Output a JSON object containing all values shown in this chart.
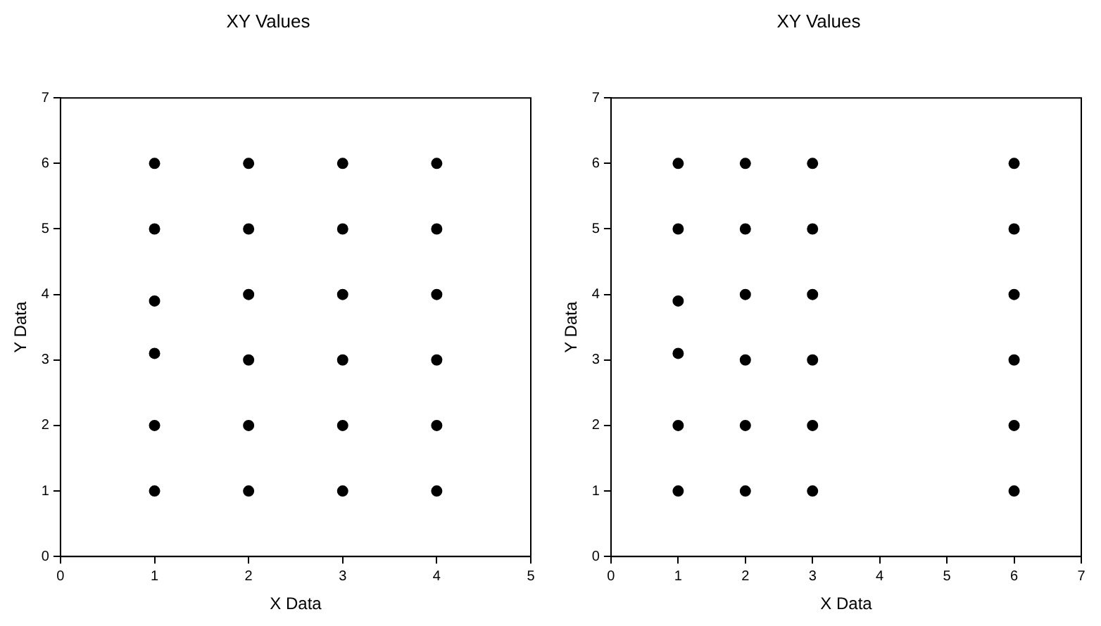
{
  "chart_data": [
    {
      "type": "scatter",
      "title": "XY Values",
      "xlabel": "X Data",
      "ylabel": "Y Data",
      "marker": "circle",
      "color": "#000000",
      "x": [
        1,
        1,
        1,
        1,
        1,
        1,
        2,
        2,
        2,
        2,
        2,
        2,
        3,
        3,
        3,
        3,
        3,
        3,
        4,
        4,
        4,
        4,
        4,
        4
      ],
      "values": [
        1,
        2,
        3.1,
        3.9,
        5,
        6,
        1,
        2,
        3,
        4,
        5,
        6,
        1,
        2,
        3,
        4,
        5,
        6,
        1,
        2,
        3,
        4,
        5,
        6
      ],
      "xlim": [
        0,
        5
      ],
      "xticks": [
        0,
        1,
        2,
        3,
        4,
        5
      ],
      "ylim": [
        0,
        7
      ],
      "yticks": [
        0,
        1,
        2,
        3,
        4,
        5,
        6,
        7
      ]
    },
    {
      "type": "scatter",
      "title": "XY Values",
      "xlabel": "X Data",
      "ylabel": "Y Data",
      "marker": "circle",
      "color": "#000000",
      "x": [
        1,
        1,
        1,
        1,
        1,
        1,
        2,
        2,
        2,
        2,
        2,
        2,
        3,
        3,
        3,
        3,
        3,
        3,
        6,
        6,
        6,
        6,
        6,
        6
      ],
      "values": [
        1,
        2,
        3.1,
        3.9,
        5,
        6,
        1,
        2,
        3,
        4,
        5,
        6,
        1,
        2,
        3,
        4,
        5,
        6,
        1,
        2,
        3,
        4,
        5,
        6
      ],
      "xlim": [
        0,
        7
      ],
      "xticks": [
        0,
        1,
        2,
        3,
        4,
        5,
        6,
        7
      ],
      "ylim": [
        0,
        7
      ],
      "yticks": [
        0,
        1,
        2,
        3,
        4,
        5,
        6,
        7
      ]
    }
  ]
}
